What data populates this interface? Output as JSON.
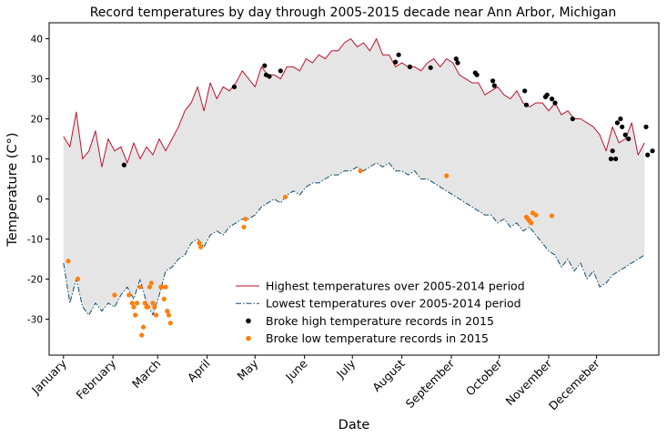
{
  "chart_data": {
    "type": "line",
    "title": "Record temperatures by day through 2005-2015 decade near Ann Arbor, Michigan",
    "xlabel": "Date",
    "ylabel": "Temperature (C°)",
    "ylim": [
      -39,
      44
    ],
    "yticks": [
      -30,
      -20,
      -10,
      0,
      10,
      20,
      30,
      40
    ],
    "xlim": [
      -8,
      374
    ],
    "x_ticks": [
      {
        "day": 1,
        "label": "January"
      },
      {
        "day": 32,
        "label": "February"
      },
      {
        "day": 60,
        "label": "March"
      },
      {
        "day": 91,
        "label": "April"
      },
      {
        "day": 121,
        "label": "May"
      },
      {
        "day": 152,
        "label": "June"
      },
      {
        "day": 182,
        "label": "July"
      },
      {
        "day": 213,
        "label": "August"
      },
      {
        "day": 244,
        "label": "September"
      },
      {
        "day": 274,
        "label": "October"
      },
      {
        "day": 305,
        "label": "November"
      },
      {
        "day": 335,
        "label": "Decemeber"
      }
    ],
    "fill_between": {
      "color": "#e5e5e5"
    },
    "series": [
      {
        "name": "Highest temperatures over 2005-2014 period",
        "style": "solid",
        "color": "#c0102a",
        "x": [
          1,
          5,
          9,
          13,
          17,
          21,
          25,
          29,
          33,
          37,
          41,
          45,
          49,
          53,
          57,
          61,
          65,
          69,
          73,
          77,
          81,
          85,
          89,
          93,
          97,
          101,
          105,
          109,
          113,
          117,
          121,
          125,
          129,
          133,
          137,
          141,
          145,
          149,
          153,
          157,
          161,
          165,
          169,
          173,
          177,
          181,
          185,
          189,
          193,
          197,
          201,
          205,
          209,
          213,
          217,
          221,
          225,
          229,
          233,
          237,
          241,
          245,
          249,
          253,
          257,
          261,
          265,
          269,
          273,
          277,
          281,
          285,
          289,
          293,
          297,
          301,
          305,
          309,
          313,
          317,
          321,
          325,
          329,
          333,
          337,
          341,
          345,
          349,
          353,
          357,
          361,
          365
        ],
        "values": [
          15.6,
          13,
          21.7,
          10,
          12,
          17,
          8,
          15,
          12,
          13,
          9,
          14,
          10,
          13,
          11,
          15,
          12,
          15,
          18,
          22,
          24,
          28,
          22,
          29,
          25,
          28,
          27,
          29,
          32,
          30,
          28,
          33,
          31,
          31,
          30,
          33,
          33,
          32,
          35,
          34,
          36,
          35,
          37,
          37,
          39,
          40,
          38,
          39,
          37,
          40,
          36,
          36,
          33,
          34,
          33,
          33,
          32,
          34,
          35,
          33,
          35,
          34,
          31,
          30,
          29,
          29,
          26,
          27,
          28,
          26,
          25,
          27,
          24,
          23,
          24,
          24,
          22,
          24,
          21,
          22,
          20,
          20,
          19,
          18,
          16,
          12,
          18,
          14,
          15,
          19,
          11,
          14
        ]
      },
      {
        "name": "Lowest temperatures over 2005-2014 period",
        "style": "dashdot",
        "color": "#0f4d6e",
        "x": [
          1,
          5,
          9,
          13,
          17,
          21,
          25,
          29,
          33,
          37,
          41,
          45,
          49,
          53,
          57,
          61,
          65,
          69,
          73,
          77,
          81,
          85,
          89,
          93,
          97,
          101,
          105,
          109,
          113,
          117,
          121,
          125,
          129,
          133,
          137,
          141,
          145,
          149,
          153,
          157,
          161,
          165,
          169,
          173,
          177,
          181,
          185,
          189,
          193,
          197,
          201,
          205,
          209,
          213,
          217,
          221,
          225,
          229,
          233,
          237,
          241,
          245,
          249,
          253,
          257,
          261,
          265,
          269,
          273,
          277,
          281,
          285,
          289,
          293,
          297,
          301,
          305,
          309,
          313,
          317,
          321,
          325,
          329,
          333,
          337,
          341,
          345,
          349,
          353,
          357,
          361,
          365
        ],
        "values": [
          -16,
          -26,
          -20,
          -27,
          -29,
          -26,
          -28,
          -26,
          -27,
          -24,
          -22,
          -25,
          -20,
          -26,
          -29,
          -24,
          -18,
          -17,
          -15,
          -14,
          -11,
          -10,
          -12,
          -9,
          -8,
          -9,
          -7,
          -6,
          -5,
          -5,
          -4,
          -2,
          -1,
          0,
          -1,
          1,
          2,
          1,
          3,
          4,
          4,
          5,
          6,
          6,
          7,
          7,
          8,
          7,
          8,
          9,
          8,
          9,
          7,
          7,
          6,
          7,
          5,
          5,
          4,
          3,
          2,
          1,
          0,
          -1,
          -2,
          -3,
          -4,
          -4,
          -6,
          -5,
          -7,
          -6,
          -8,
          -7,
          -9,
          -11,
          -13,
          -14,
          -17,
          -15,
          -18,
          -16,
          -20,
          -18,
          -22,
          -21,
          -19,
          -18,
          -17,
          -16,
          -15,
          -14
        ]
      },
      {
        "name": "Broke high temperature records in 2015",
        "style": "scatter",
        "color": "#000000",
        "x": [
          39,
          108,
          127,
          128,
          130,
          137,
          209,
          211,
          218,
          231,
          247,
          248,
          259,
          260,
          270,
          271,
          290,
          291,
          303,
          304,
          307,
          309,
          320,
          344,
          345,
          347,
          348,
          350,
          351,
          353,
          355,
          366,
          367,
          370
        ],
        "values": [
          8.5,
          28,
          33.3,
          31,
          30.6,
          32,
          34.2,
          36,
          33,
          32.8,
          35,
          34,
          31.5,
          31,
          29.5,
          28.3,
          27,
          23.5,
          25.5,
          26,
          25,
          24,
          20,
          10,
          12,
          10,
          19,
          20,
          18,
          16,
          15,
          18,
          11,
          12
        ]
      },
      {
        "name": "Broke low temperature records in 2015",
        "style": "scatter",
        "color": "#ff7f0e",
        "x": [
          4,
          10,
          33,
          42,
          44,
          45,
          46,
          47,
          49,
          50,
          51,
          52,
          53,
          54,
          55,
          56,
          57,
          58,
          59,
          62,
          63,
          64,
          65,
          66,
          67,
          68,
          86,
          87,
          114,
          115,
          140,
          187,
          241,
          291,
          292,
          293,
          294,
          295,
          297,
          307
        ],
        "values": [
          -15.5,
          -20,
          -24,
          -24,
          -26,
          -27,
          -29,
          -26,
          -22,
          -34,
          -32,
          -26,
          -27,
          -27,
          -22,
          -21,
          -26,
          -27,
          -29,
          -22,
          -22,
          -25,
          -22,
          -28,
          -29,
          -31,
          -11,
          -12,
          -7,
          -5,
          0.5,
          7,
          5.8,
          -4.5,
          -5,
          -5.5,
          -6,
          -3.5,
          -4,
          -4.2
        ]
      }
    ],
    "legend": {
      "placement": "lower-center"
    }
  }
}
